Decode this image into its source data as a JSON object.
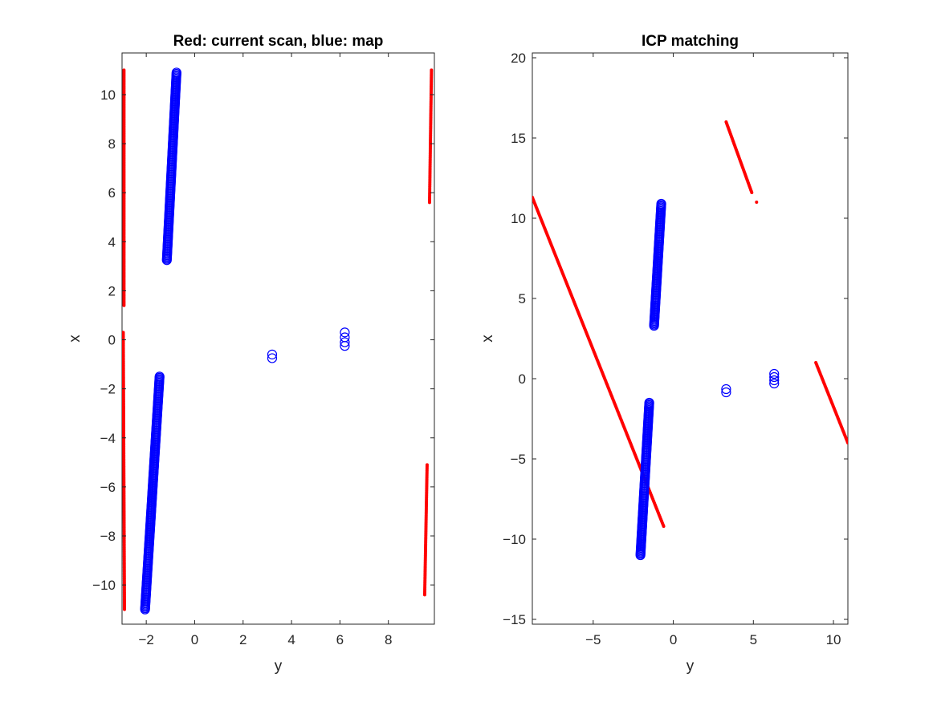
{
  "chart_data": [
    {
      "type": "scatter",
      "title": "Red: current scan, blue: map",
      "xlabel": "y",
      "ylabel": "x",
      "xlim": [
        -3,
        9.9
      ],
      "ylim": [
        -11.6,
        11.7
      ],
      "xticks": [
        -2,
        0,
        2,
        4,
        6,
        8
      ],
      "yticks": [
        -10,
        -8,
        -6,
        -4,
        -2,
        0,
        2,
        4,
        6,
        8,
        10
      ],
      "grid": false,
      "series": [
        {
          "color": "#ff0000",
          "marker": "dot",
          "segments": [
            {
              "from": [
                -2.92,
                11.0
              ],
              "to": [
                -2.92,
                1.4
              ]
            },
            {
              "from": [
                -2.95,
                0.3
              ],
              "to": [
                -2.9,
                -11.0
              ]
            },
            {
              "from": [
                9.78,
                11.0
              ],
              "to": [
                9.7,
                5.6
              ]
            },
            {
              "from": [
                9.6,
                -5.1
              ],
              "to": [
                9.5,
                -10.4
              ]
            }
          ]
        },
        {
          "color": "#0000ff",
          "marker": "circle",
          "segments": [
            {
              "from": [
                -0.75,
                10.9
              ],
              "to": [
                -1.15,
                3.25
              ]
            },
            {
              "from": [
                -1.45,
                -1.5
              ],
              "to": [
                -2.05,
                -11.0
              ]
            }
          ],
          "points": [
            [
              3.2,
              -0.6
            ],
            [
              3.2,
              -0.75
            ],
            [
              6.2,
              0.3
            ],
            [
              6.2,
              0.1
            ],
            [
              6.2,
              -0.1
            ],
            [
              6.2,
              -0.25
            ]
          ]
        }
      ]
    },
    {
      "type": "scatter",
      "title": "ICP matching",
      "xlabel": "y",
      "ylabel": "x",
      "xlim": [
        -8.8,
        10.9
      ],
      "ylim": [
        -15.3,
        20.3
      ],
      "xticks": [
        -5,
        0,
        5,
        10
      ],
      "yticks": [
        -15,
        -10,
        -5,
        0,
        5,
        10,
        15,
        20
      ],
      "grid": false,
      "series": [
        {
          "color": "#ff0000",
          "marker": "dot",
          "segments": [
            {
              "from": [
                -8.8,
                11.3
              ],
              "to": [
                -0.6,
                -9.2
              ]
            },
            {
              "from": [
                3.3,
                16.0
              ],
              "to": [
                4.9,
                11.6
              ]
            },
            {
              "from": [
                8.9,
                1.0
              ],
              "to": [
                10.9,
                -4.0
              ]
            }
          ],
          "points": [
            [
              5.2,
              11.0
            ]
          ]
        },
        {
          "color": "#0000ff",
          "marker": "circle",
          "segments": [
            {
              "from": [
                -0.75,
                10.9
              ],
              "to": [
                -1.2,
                3.3
              ]
            },
            {
              "from": [
                -1.5,
                -1.5
              ],
              "to": [
                -2.05,
                -11.0
              ]
            }
          ],
          "points": [
            [
              3.3,
              -0.65
            ],
            [
              3.3,
              -0.85
            ],
            [
              6.3,
              0.3
            ],
            [
              6.3,
              0.1
            ],
            [
              6.3,
              -0.1
            ],
            [
              6.3,
              -0.3
            ]
          ]
        }
      ]
    }
  ]
}
